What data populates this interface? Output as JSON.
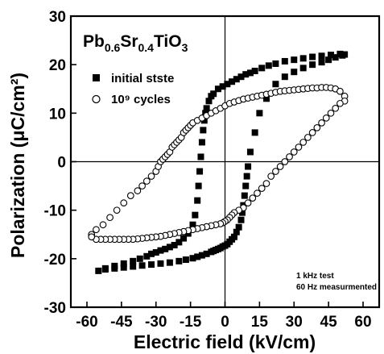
{
  "chart_data": {
    "type": "scatter",
    "xlabel": "Electric field (kV/cm)",
    "ylabel": "Polarization (μC/cm²)",
    "xlim": [
      -67,
      67
    ],
    "ylim": [
      -30,
      30
    ],
    "xticks": [
      -60,
      -45,
      -30,
      -15,
      0,
      15,
      30,
      45,
      60
    ],
    "yticks": [
      -30,
      -20,
      -10,
      0,
      10,
      20,
      30
    ],
    "tick_labels_x": [
      "-60",
      "-45",
      "-30",
      "-15",
      "0",
      "15",
      "30",
      "45",
      "60"
    ],
    "tick_labels_y": [
      "-30",
      "-20",
      "-10",
      "0",
      "10",
      "20",
      "30"
    ],
    "grid": false,
    "legend_position": "top-left",
    "formula": {
      "parts": [
        {
          "text": "Pb",
          "sub": false
        },
        {
          "text": "0.6",
          "sub": true
        },
        {
          "text": "Sr",
          "sub": false
        },
        {
          "text": "0.4",
          "sub": true
        },
        {
          "text": "TiO",
          "sub": false
        },
        {
          "text": "3",
          "sub": true
        }
      ]
    },
    "annotations": [
      "1 kHz test",
      "60 Hz measurmented"
    ],
    "series": [
      {
        "name": "initial stste",
        "marker": "filled-square",
        "color": "#000000",
        "x": [
          -55,
          -52,
          -48,
          -44,
          -40,
          -37,
          -34,
          -32,
          -30,
          -28,
          -26,
          -24,
          -22,
          -20,
          -18,
          -16,
          -14,
          -13,
          -12,
          -11.5,
          -11,
          -10.5,
          -10,
          -9.5,
          -9,
          -8.5,
          -8,
          -7,
          -6,
          -5,
          -3,
          -1,
          1,
          3,
          5,
          7,
          9,
          11,
          13,
          16,
          19,
          22,
          26,
          30,
          34,
          38,
          42,
          46,
          50,
          52,
          51,
          48,
          45,
          42,
          38,
          34,
          30,
          26,
          22,
          18,
          15,
          13,
          11,
          10,
          9.5,
          9,
          8.5,
          8,
          7.5,
          7,
          6,
          5,
          4,
          3,
          2,
          1,
          0,
          -1,
          -2,
          -3,
          -4,
          -5,
          -6,
          -8,
          -10,
          -12,
          -14,
          -17,
          -20,
          -24,
          -28,
          -32,
          -36,
          -40,
          -44,
          -48,
          -52
        ],
        "y": [
          -22.5,
          -22,
          -21.5,
          -21,
          -20.5,
          -20,
          -19.5,
          -19,
          -18.7,
          -18.3,
          -18,
          -17.6,
          -17.2,
          -16.6,
          -15.8,
          -14.8,
          -13,
          -11,
          -8,
          -5,
          -2,
          1,
          4,
          6.5,
          8.5,
          10,
          11,
          12.5,
          13.5,
          14,
          15,
          15.5,
          16,
          16.5,
          17,
          17.5,
          18,
          18.3,
          18.7,
          19.3,
          19.8,
          20.2,
          20.7,
          21,
          21.3,
          21.6,
          21.8,
          22,
          22.2,
          22.1,
          21.9,
          21.5,
          21,
          20.5,
          20,
          19.3,
          18.5,
          17.5,
          16,
          13,
          10,
          6,
          2,
          -1,
          -3,
          -5,
          -7,
          -9,
          -10.5,
          -12,
          -13.5,
          -14.5,
          -15.5,
          -16,
          -16.5,
          -17,
          -17.3,
          -17.5,
          -17.8,
          -18,
          -18.2,
          -18.4,
          -18.6,
          -19,
          -19.3,
          -19.6,
          -19.9,
          -20.2,
          -20.5,
          -20.8,
          -21,
          -21.2,
          -21.4,
          -21.6,
          -21.8,
          -22,
          -22.2
        ]
      },
      {
        "name": "10⁹ cycles",
        "marker": "open-circle",
        "color": "#000000",
        "x": [
          -58,
          -56,
          -53,
          -50,
          -47,
          -44,
          -41,
          -38,
          -36,
          -34,
          -32,
          -30,
          -29,
          -28,
          -27,
          -26,
          -25,
          -24,
          -23,
          -22,
          -21,
          -20,
          -19,
          -18,
          -17,
          -16,
          -15,
          -14,
          -12,
          -10,
          -8,
          -6,
          -4,
          -2,
          0,
          2,
          4,
          6,
          8,
          10,
          12,
          14,
          16,
          18,
          20,
          22,
          24,
          26,
          28,
          30,
          32,
          34,
          36,
          38,
          40,
          42,
          44,
          46,
          48,
          50,
          52,
          52,
          50,
          48,
          46,
          44,
          42,
          40,
          38,
          36,
          34,
          32,
          30,
          28,
          26,
          24,
          22,
          20,
          18,
          16,
          14,
          12,
          10,
          8,
          6,
          4,
          3,
          2,
          1,
          0,
          -1,
          -2,
          -4,
          -6,
          -8,
          -10,
          -12,
          -14,
          -16,
          -18,
          -20,
          -22,
          -24,
          -26,
          -28,
          -30,
          -32,
          -34,
          -36,
          -38,
          -40,
          -42,
          -44,
          -46,
          -48,
          -50,
          -52,
          -54,
          -56,
          -58
        ],
        "y": [
          -15,
          -14,
          -13,
          -11.5,
          -10,
          -8.5,
          -7,
          -6,
          -5,
          -4,
          -3,
          -2,
          -1,
          0,
          0.5,
          1,
          1.5,
          2,
          3,
          3.5,
          4,
          4.5,
          5,
          6,
          6.5,
          7,
          7.5,
          8,
          8.5,
          9,
          9.5,
          10,
          10.5,
          11,
          11.5,
          12,
          12.3,
          12.6,
          12.9,
          13.1,
          13.3,
          13.5,
          13.7,
          13.9,
          14.1,
          14.3,
          14.5,
          14.6,
          14.7,
          14.8,
          14.9,
          15,
          15.1,
          15.2,
          15.2,
          15.3,
          15.3,
          15.2,
          15,
          14.5,
          13.5,
          12.5,
          12,
          11,
          10,
          9,
          8,
          7,
          6,
          5,
          4,
          3,
          2,
          1,
          0,
          -1,
          -2,
          -3,
          -4.5,
          -5.5,
          -6.5,
          -7.5,
          -8.5,
          -9.5,
          -10,
          -10.5,
          -11,
          -11.5,
          -12,
          -12.3,
          -12.6,
          -12.8,
          -13,
          -13.2,
          -13.4,
          -13.6,
          -13.8,
          -14,
          -14.2,
          -14.4,
          -14.6,
          -14.8,
          -15,
          -15.2,
          -15.4,
          -15.5,
          -15.6,
          -15.7,
          -15.8,
          -15.9,
          -16,
          -16,
          -16,
          -16,
          -16,
          -16,
          -16,
          -16,
          -16,
          -15.5
        ]
      }
    ]
  },
  "colors": {
    "axis": "#000000",
    "background": "#ffffff"
  }
}
